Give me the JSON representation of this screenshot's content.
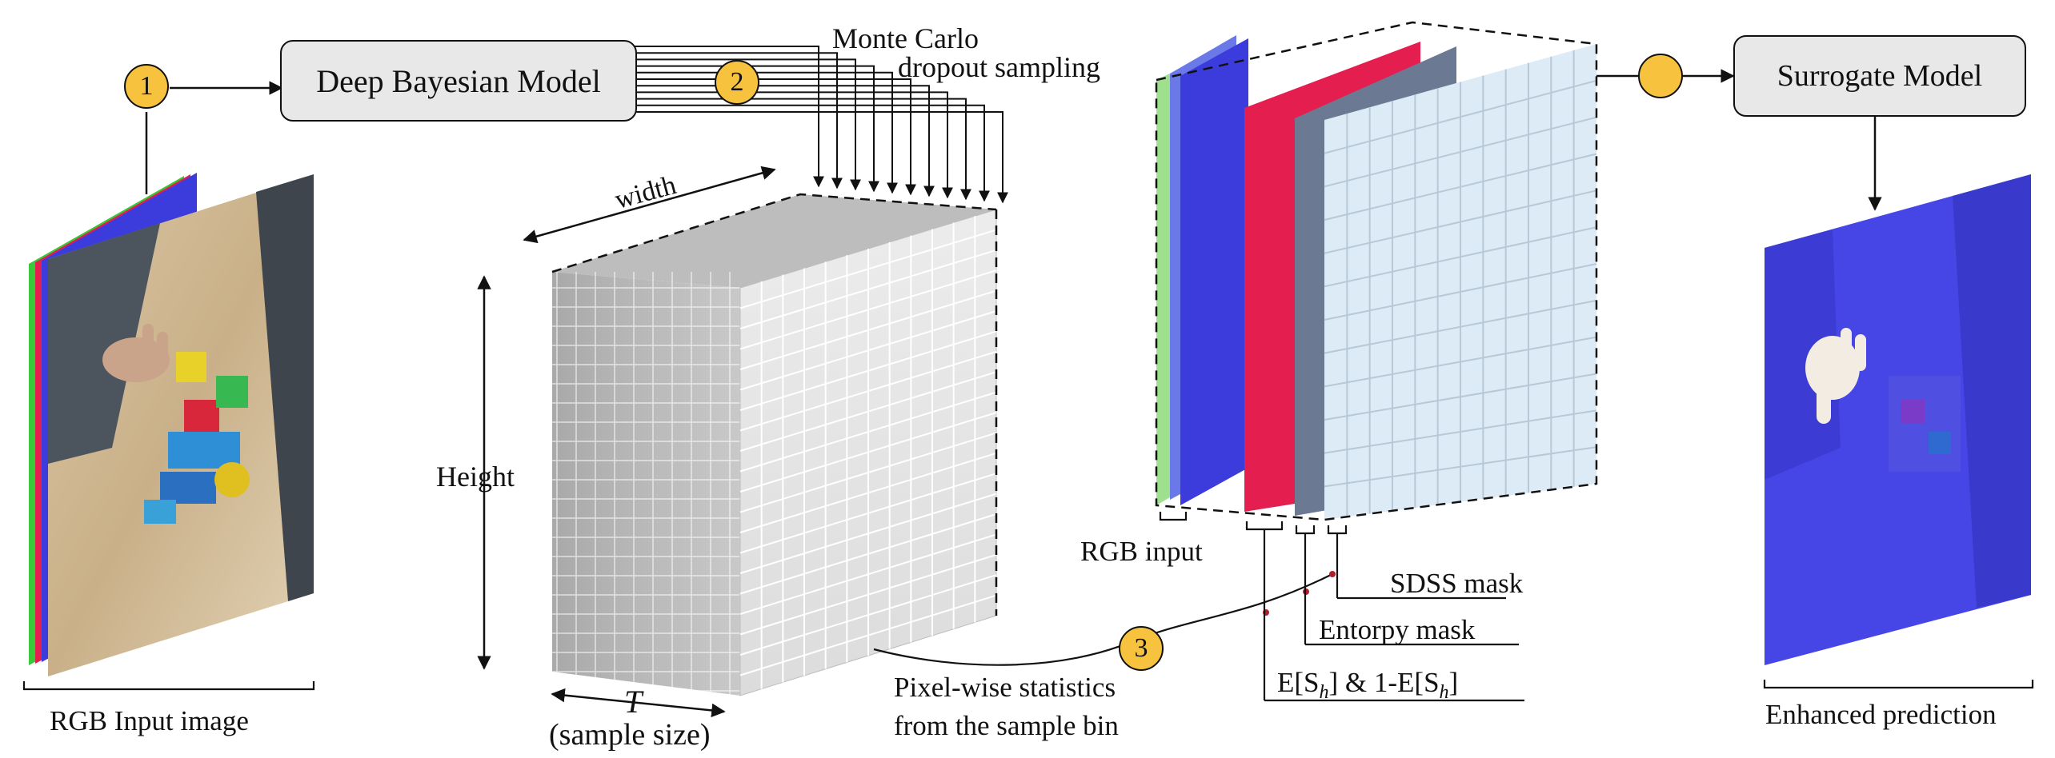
{
  "model_box": {
    "label": "Deep Bayesian Model"
  },
  "surrogate_box": {
    "label": "Surrogate Model"
  },
  "steps": {
    "s1": "1",
    "s2": "2",
    "s3": "3",
    "s4": ""
  },
  "labels": {
    "mc_line1": "Monte Carlo",
    "mc_line2": "dropout sampling",
    "width": "width",
    "height": "Height",
    "t_symbol": "T",
    "sample_size": "(sample size)",
    "stats_line1": "Pixel-wise statistics",
    "stats_line2": "from the sample bin",
    "rgb_input_image": "RGB Input image",
    "rgb_input": "RGB input",
    "sdss_mask": "SDSS mask",
    "entropy_mask": "Entorpy mask",
    "expectation": "E[S",
    "expectation_sub": "h",
    "expectation_mid": "] & 1-E[S",
    "expectation_sub2": "h",
    "expectation_end": "]",
    "enhanced_prediction": "Enhanced prediction"
  },
  "colors": {
    "step_fill": "#f7c33f",
    "box_fill": "#e8e8e8",
    "channel_red": "#e51e50",
    "channel_green": "#38c838",
    "channel_blue": "#3c3cdc",
    "mask_light": "#dcebf6",
    "mask_slate": "#6b7a92",
    "enhanced_overlay": "#4646e6",
    "cube_gray": "#d2d2d2"
  },
  "icons": {
    "rgb_photo": "rgb-photo-with-hand-and-toy-blocks",
    "enhanced_photo": "blue-tinted-photo-with-hand"
  }
}
